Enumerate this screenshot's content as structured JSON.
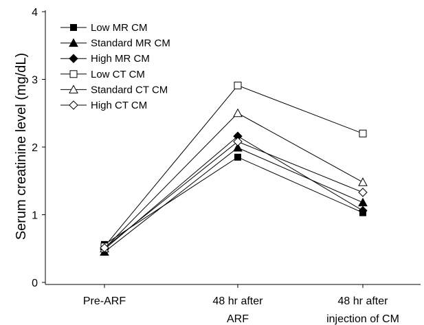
{
  "chart_data": {
    "type": "line",
    "title": "",
    "xlabel": "",
    "ylabel": "Serum creatinine level (mg/dL)",
    "categories": [
      [
        "Pre-ARF"
      ],
      [
        "48 hr after",
        "ARF"
      ],
      [
        "48 hr after",
        "injection of CM"
      ]
    ],
    "ylim": [
      0,
      4
    ],
    "yticks": [
      0,
      1,
      2,
      3,
      4
    ],
    "grid": false,
    "legend_position": "top-left",
    "series": [
      {
        "name": "Low MR CM",
        "marker": "square",
        "filled": true,
        "values": [
          0.56,
          1.85,
          1.03
        ]
      },
      {
        "name": "Standard MR CM",
        "marker": "triangle",
        "filled": true,
        "values": [
          0.45,
          1.99,
          1.18
        ]
      },
      {
        "name": "High MR CM",
        "marker": "diamond",
        "filled": true,
        "values": [
          0.49,
          2.16,
          1.06
        ]
      },
      {
        "name": "Low CT CM",
        "marker": "square",
        "filled": false,
        "values": [
          0.53,
          2.91,
          2.2
        ]
      },
      {
        "name": "Standard CT CM",
        "marker": "triangle",
        "filled": false,
        "values": [
          0.5,
          2.5,
          1.48
        ]
      },
      {
        "name": "High CT CM",
        "marker": "diamond",
        "filled": false,
        "values": [
          0.51,
          2.08,
          1.33
        ]
      }
    ]
  }
}
